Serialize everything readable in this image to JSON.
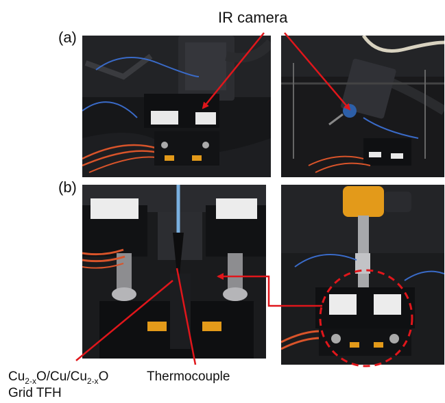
{
  "labels": {
    "ir_camera": "IR camera",
    "panel_a": "(a)",
    "panel_b": "(b)",
    "thermocouple": "Thermocouple",
    "tfh_prefix": "Cu",
    "tfh_sub1": "2-x",
    "tfh_mid": "O/Cu/Cu",
    "tfh_sub2": "2-x",
    "tfh_suffix": "O",
    "tfh_line2": "Grid TFH"
  },
  "colors": {
    "annotation_red": "#e0161b",
    "sample_block": "#1b1c1f",
    "gold_holder": "#e39a1a",
    "wire_red": "#d9542a",
    "wire_blue": "#3a6bc9"
  },
  "photos": [
    {
      "name": "photo-a-left-setup",
      "content": "heater stage under IR camera, front view"
    },
    {
      "name": "photo-a-right-setup",
      "content": "IR camera on arm, side view"
    },
    {
      "name": "photo-b-left-closeup",
      "content": "close-up of clamped sample and thermocouple"
    },
    {
      "name": "photo-b-right-setup",
      "content": "stage with thermocouple holder, highlighted area"
    }
  ]
}
